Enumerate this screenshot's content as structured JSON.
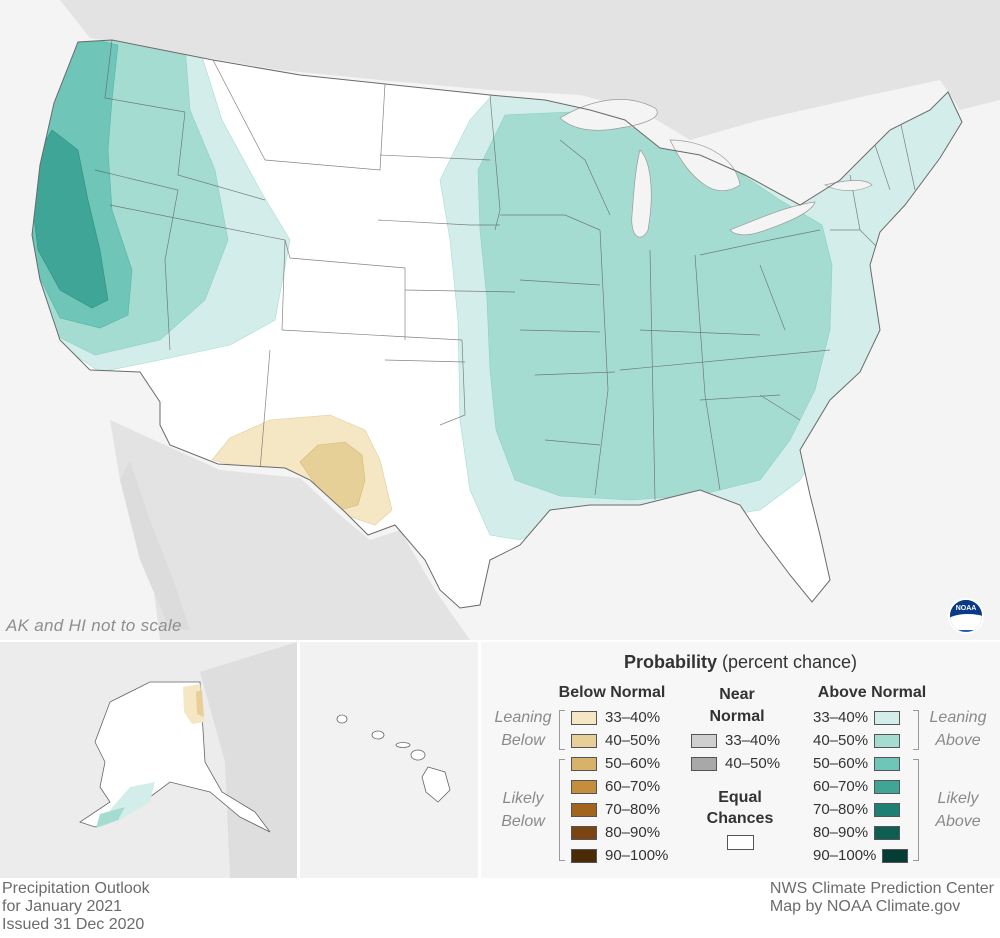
{
  "map": {
    "scale_note": "AK and HI not to scale",
    "logo": "NOAA",
    "colors": {
      "below_33_40": "#f5e6c4",
      "below_40_50": "#e7cf98",
      "above_33_40": "#d3eeea",
      "above_40_50": "#a5dcd2",
      "above_50_60": "#6fc5b7",
      "above_60_70": "#3ea597",
      "equal_chances": "#ffffff",
      "land_other": "#e6e6e6",
      "water": "#f4f4f4"
    }
  },
  "legend": {
    "title_bold": "Probability",
    "title_rest": "(percent chance)",
    "below_header": "Below Normal",
    "near_header_1": "Near",
    "near_header_2": "Normal",
    "above_header": "Above Normal",
    "leaning_below_1": "Leaning",
    "leaning_below_2": "Below",
    "likely_below_1": "Likely",
    "likely_below_2": "Below",
    "leaning_above_1": "Leaning",
    "leaning_above_2": "Above",
    "likely_above_1": "Likely",
    "likely_above_2": "Above",
    "equal_1": "Equal",
    "equal_2": "Chances",
    "below": [
      {
        "label": "33–40%",
        "color": "#f5e6c4"
      },
      {
        "label": "40–50%",
        "color": "#e7cf98"
      },
      {
        "label": "50–60%",
        "color": "#d7b26a"
      },
      {
        "label": "60–70%",
        "color": "#c58e3d"
      },
      {
        "label": "70–80%",
        "color": "#a1651e"
      },
      {
        "label": "80–90%",
        "color": "#7a4512"
      },
      {
        "label": "90–100%",
        "color": "#4b2a08"
      }
    ],
    "near": [
      {
        "label": "33–40%",
        "color": "#cfcfcf"
      },
      {
        "label": "40–50%",
        "color": "#a8a8a8"
      }
    ],
    "above": [
      {
        "label": "33–40%",
        "color": "#d3eeea"
      },
      {
        "label": "40–50%",
        "color": "#a5dcd2"
      },
      {
        "label": "50–60%",
        "color": "#6fc5b7"
      },
      {
        "label": "60–70%",
        "color": "#3ea597"
      },
      {
        "label": "70–80%",
        "color": "#1f7f72"
      },
      {
        "label": "80–90%",
        "color": "#0f5e52"
      },
      {
        "label": "90–100%",
        "color": "#053d35"
      }
    ]
  },
  "footer": {
    "left_1": "Precipitation Outlook",
    "left_2": "for January 2021",
    "left_3": "Issued 31 Dec 2020",
    "right_1": "NWS Climate Prediction Center",
    "right_2": "Map by NOAA Climate.gov"
  }
}
